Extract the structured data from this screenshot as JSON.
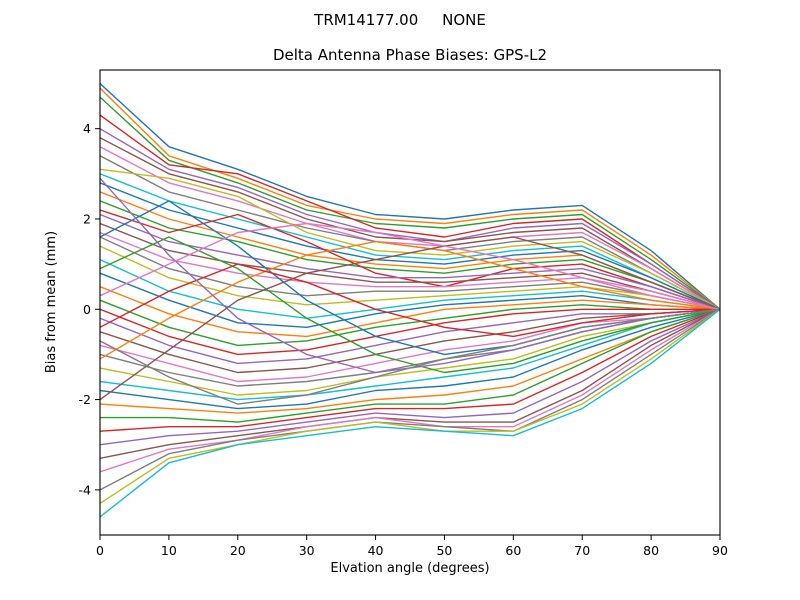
{
  "figure": {
    "suptitle": "TRM14177.00     NONE",
    "title": "Delta Antenna Phase Biases: GPS-L2",
    "xlabel": "Elvation angle (degrees)",
    "ylabel": "Bias from mean (mm)"
  },
  "chart_data": {
    "type": "line",
    "suptitle": "TRM14177.00     NONE",
    "title": "Delta Antenna Phase Biases: GPS-L2",
    "xlabel": "Elvation angle (degrees)",
    "ylabel": "Bias from mean (mm)",
    "xlim": [
      0,
      90
    ],
    "ylim": [
      -5.0,
      5.3
    ],
    "xticks": [
      0,
      10,
      20,
      30,
      40,
      50,
      60,
      70,
      80,
      90
    ],
    "yticks": [
      -4,
      -2,
      0,
      2,
      4
    ],
    "grid": false,
    "legend": null,
    "line_width": 1.4,
    "palette": [
      "#1f77b4",
      "#ff7f0e",
      "#2ca02c",
      "#d62728",
      "#9467bd",
      "#8c564b",
      "#e377c2",
      "#7f7f7f",
      "#bcbd22",
      "#17becf"
    ],
    "x": [
      0,
      10,
      20,
      30,
      40,
      50,
      60,
      70,
      80,
      90
    ],
    "series": [
      {
        "y": [
          5.0,
          3.6,
          3.1,
          2.5,
          2.1,
          2.0,
          2.2,
          2.3,
          1.3,
          0
        ]
      },
      {
        "y": [
          4.9,
          3.4,
          2.9,
          2.3,
          2.0,
          1.9,
          2.1,
          2.2,
          1.2,
          0
        ]
      },
      {
        "y": [
          4.7,
          3.3,
          2.8,
          2.2,
          1.9,
          1.8,
          2.0,
          2.1,
          1.1,
          0
        ]
      },
      {
        "y": [
          4.3,
          3.2,
          3.0,
          2.4,
          1.8,
          1.6,
          1.9,
          2.0,
          1.0,
          0
        ]
      },
      {
        "y": [
          4.0,
          3.1,
          2.7,
          2.1,
          1.7,
          1.5,
          1.8,
          1.9,
          1.0,
          0
        ]
      },
      {
        "y": [
          3.8,
          3.0,
          2.6,
          2.0,
          1.6,
          1.5,
          1.7,
          1.8,
          0.9,
          0
        ]
      },
      {
        "y": [
          3.6,
          2.8,
          2.4,
          1.9,
          1.5,
          1.4,
          1.6,
          1.7,
          0.9,
          0
        ]
      },
      {
        "y": [
          3.4,
          2.6,
          2.2,
          1.8,
          1.5,
          1.3,
          1.5,
          1.6,
          0.8,
          0
        ]
      },
      {
        "y": [
          3.1,
          2.9,
          2.5,
          1.7,
          1.3,
          1.2,
          1.4,
          1.5,
          0.8,
          0
        ]
      },
      {
        "y": [
          3.0,
          2.4,
          2.0,
          1.6,
          1.2,
          1.1,
          1.3,
          1.4,
          0.7,
          0
        ]
      },
      {
        "y": [
          2.8,
          2.2,
          1.8,
          1.4,
          1.1,
          1.0,
          1.2,
          1.3,
          0.7,
          0
        ]
      },
      {
        "y": [
          2.6,
          2.0,
          1.6,
          1.2,
          1.0,
          0.9,
          1.1,
          1.2,
          0.6,
          0
        ]
      },
      {
        "y": [
          2.4,
          1.8,
          1.5,
          1.1,
          0.9,
          0.8,
          1.0,
          1.1,
          0.6,
          0
        ]
      },
      {
        "y": [
          2.2,
          1.7,
          2.1,
          1.5,
          0.8,
          0.5,
          0.9,
          1.0,
          0.5,
          0
        ]
      },
      {
        "y": [
          2.1,
          1.5,
          1.2,
          0.9,
          0.7,
          0.7,
          0.8,
          0.9,
          0.5,
          0
        ]
      },
      {
        "y": [
          1.9,
          1.3,
          1.0,
          0.8,
          0.6,
          0.6,
          0.7,
          0.8,
          0.4,
          0
        ]
      },
      {
        "y": [
          1.7,
          1.1,
          0.8,
          0.6,
          0.5,
          0.5,
          0.6,
          0.7,
          0.4,
          0
        ]
      },
      {
        "y": [
          1.6,
          0.9,
          0.5,
          0.3,
          0.4,
          0.4,
          0.5,
          0.6,
          0.3,
          0
        ]
      },
      {
        "y": [
          1.4,
          0.7,
          0.3,
          0.1,
          0.2,
          0.3,
          0.4,
          0.5,
          0.3,
          0
        ]
      },
      {
        "y": [
          1.1,
          0.4,
          0.0,
          -0.2,
          0.0,
          0.2,
          0.3,
          0.4,
          0.2,
          0
        ]
      },
      {
        "y": [
          0.8,
          0.2,
          -0.3,
          -0.4,
          -0.1,
          0.1,
          0.2,
          0.3,
          0.1,
          0
        ]
      },
      {
        "y": [
          0.5,
          -0.1,
          -0.5,
          -0.6,
          -0.3,
          0.0,
          0.1,
          0.2,
          0.1,
          0
        ]
      },
      {
        "y": [
          0.2,
          -0.4,
          -0.8,
          -0.7,
          -0.4,
          -0.2,
          0.0,
          0.1,
          0.0,
          0
        ]
      },
      {
        "y": [
          0.0,
          -0.6,
          -1.0,
          -0.9,
          -0.6,
          -0.3,
          -0.1,
          0.0,
          0.0,
          0
        ]
      },
      {
        "y": [
          -0.2,
          -0.8,
          -1.2,
          -1.1,
          -0.8,
          -0.5,
          -0.3,
          -0.1,
          -0.1,
          0
        ]
      },
      {
        "y": [
          -0.5,
          -1.0,
          -1.4,
          -1.3,
          -1.0,
          -0.7,
          -0.5,
          -0.2,
          -0.1,
          0
        ]
      },
      {
        "y": [
          -0.8,
          -1.2,
          -1.6,
          -1.5,
          -1.2,
          -0.9,
          -0.7,
          -0.3,
          -0.2,
          0
        ]
      },
      {
        "y": [
          -1.0,
          -1.4,
          -1.7,
          -1.6,
          -1.4,
          -1.1,
          -0.9,
          -0.5,
          -0.2,
          0
        ]
      },
      {
        "y": [
          -1.3,
          -1.6,
          -1.9,
          -1.8,
          -1.5,
          -1.3,
          -1.1,
          -0.6,
          -0.3,
          0
        ]
      },
      {
        "y": [
          -1.6,
          -1.8,
          -2.0,
          -1.9,
          -1.7,
          -1.5,
          -1.3,
          -0.8,
          -0.3,
          0
        ]
      },
      {
        "y": [
          -1.8,
          -2.0,
          -2.2,
          -2.1,
          -1.8,
          -1.7,
          -1.5,
          -0.9,
          -0.4,
          0
        ]
      },
      {
        "y": [
          -2.1,
          -2.2,
          -2.3,
          -2.2,
          -2.0,
          -1.9,
          -1.7,
          -1.1,
          -0.5,
          0
        ]
      },
      {
        "y": [
          -2.4,
          -2.4,
          -2.5,
          -2.3,
          -2.1,
          -2.1,
          -1.9,
          -1.2,
          -0.5,
          0
        ]
      },
      {
        "y": [
          -2.7,
          -2.6,
          -2.6,
          -2.4,
          -2.2,
          -2.2,
          -2.1,
          -1.4,
          -0.6,
          0
        ]
      },
      {
        "y": [
          -3.0,
          -2.8,
          -2.7,
          -2.5,
          -2.3,
          -2.4,
          -2.3,
          -1.6,
          -0.7,
          0
        ]
      },
      {
        "y": [
          -3.3,
          -3.0,
          -2.8,
          -2.6,
          -2.4,
          -2.5,
          -2.5,
          -1.8,
          -0.8,
          0
        ]
      },
      {
        "y": [
          -3.6,
          -3.1,
          -2.9,
          -2.6,
          -2.4,
          -2.6,
          -2.6,
          -1.9,
          -0.9,
          0
        ]
      },
      {
        "y": [
          -4.0,
          -3.2,
          -2.9,
          -2.7,
          -2.5,
          -2.6,
          -2.7,
          -2.0,
          -1.0,
          0
        ]
      },
      {
        "y": [
          -4.3,
          -3.3,
          -3.0,
          -2.7,
          -2.5,
          -2.7,
          -2.7,
          -2.1,
          -1.1,
          0
        ]
      },
      {
        "y": [
          -4.6,
          -3.4,
          -3.0,
          -2.8,
          -2.6,
          -2.7,
          -2.8,
          -2.2,
          -1.2,
          0
        ]
      },
      {
        "y": [
          1.6,
          2.4,
          1.4,
          0.2,
          -0.6,
          -1.0,
          -0.8,
          -0.4,
          -0.2,
          0
        ]
      },
      {
        "y": [
          -1.1,
          -0.2,
          0.6,
          1.2,
          1.5,
          1.3,
          0.9,
          0.5,
          0.2,
          0
        ]
      },
      {
        "y": [
          0.9,
          1.6,
          0.9,
          -0.2,
          -1.0,
          -1.4,
          -1.2,
          -0.7,
          -0.3,
          0
        ]
      },
      {
        "y": [
          -0.4,
          0.4,
          1.0,
          0.6,
          0.0,
          -0.4,
          -0.6,
          -0.3,
          -0.1,
          0
        ]
      },
      {
        "y": [
          2.9,
          1.2,
          -0.2,
          -1.0,
          -1.4,
          -1.2,
          -0.9,
          -0.5,
          -0.2,
          0
        ]
      },
      {
        "y": [
          -2.0,
          -0.9,
          0.2,
          0.8,
          1.1,
          1.4,
          1.6,
          1.2,
          0.6,
          0
        ]
      },
      {
        "y": [
          0.3,
          1.0,
          1.7,
          1.9,
          1.7,
          1.4,
          1.1,
          0.7,
          0.3,
          0
        ]
      },
      {
        "y": [
          -0.7,
          -1.5,
          -2.1,
          -1.9,
          -1.5,
          -1.1,
          -0.8,
          -0.4,
          -0.2,
          0
        ]
      }
    ]
  }
}
